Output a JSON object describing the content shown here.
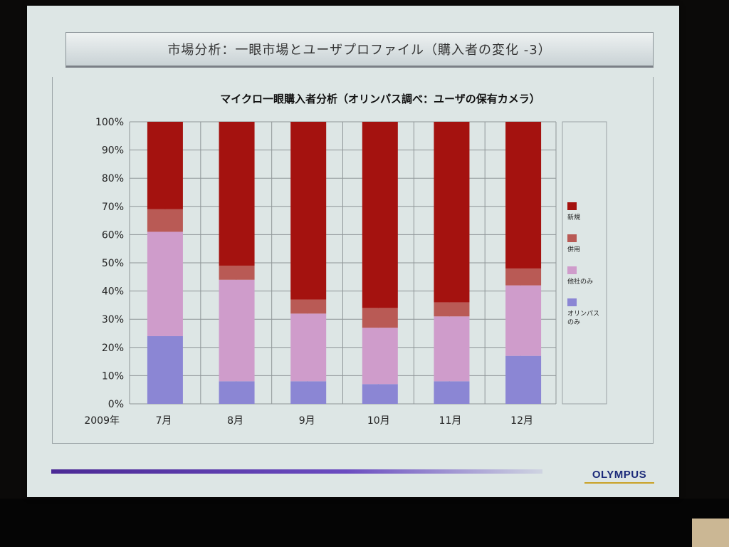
{
  "slide": {
    "title": "市場分析：一眼市場とユーザプロファイル（購入者の変化 -3）",
    "logo": "OLYMPUS"
  },
  "chart_data": {
    "type": "bar",
    "stacked": true,
    "title": "マイクロ一眼購入者分析（オリンパス調べ：ユーザの保有カメラ）",
    "x_prefix": "2009年",
    "categories": [
      "7月",
      "8月",
      "9月",
      "10月",
      "11月",
      "12月"
    ],
    "series": [
      {
        "name": "オリンパスのみ",
        "color": "#8b86d4",
        "values": [
          24,
          8,
          8,
          7,
          8,
          17
        ]
      },
      {
        "name": "他社のみ",
        "color": "#cf9ccb",
        "values": [
          37,
          36,
          24,
          20,
          23,
          25
        ]
      },
      {
        "name": "併用",
        "color": "#b95a55",
        "values": [
          8,
          5,
          5,
          7,
          5,
          6
        ]
      },
      {
        "name": "新規",
        "color": "#a4120f",
        "values": [
          31,
          51,
          63,
          66,
          64,
          52
        ]
      }
    ],
    "yticks": [
      "0%",
      "10%",
      "20%",
      "30%",
      "40%",
      "50%",
      "60%",
      "70%",
      "80%",
      "90%",
      "100%"
    ],
    "ylim": [
      0,
      100
    ],
    "grid": true,
    "legend_position": "right"
  }
}
